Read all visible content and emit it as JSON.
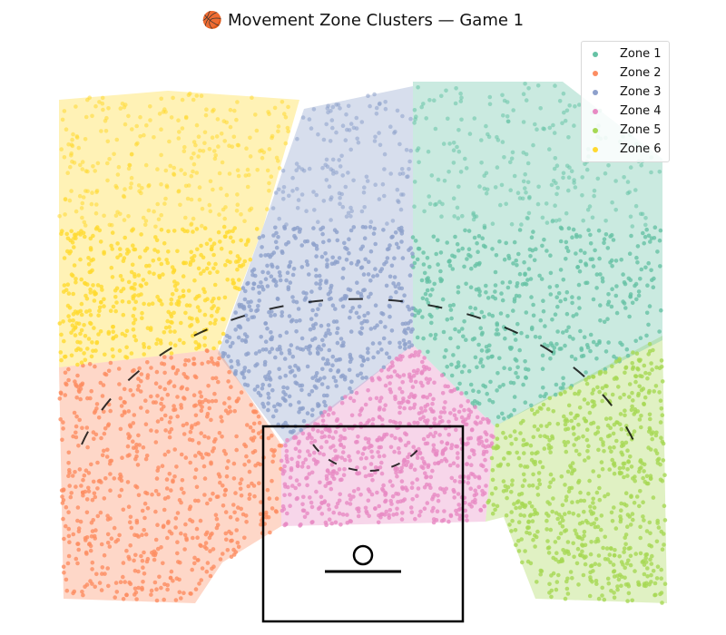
{
  "chart_data": {
    "type": "scatter",
    "title": "🏀 Movement Zone Clusters — Game 1",
    "xlabel": "",
    "ylabel": "",
    "grid": false,
    "legend_placement": "top-right",
    "axes_visible": false,
    "series": [
      {
        "name": "Zone 1",
        "color": "#66c2a5",
        "region": [
          [
            455,
            280
          ],
          [
            455,
            380
          ],
          [
            545,
            470
          ],
          [
            730,
            375
          ],
          [
            730,
            175
          ],
          [
            620,
            90
          ],
          [
            455,
            90
          ]
        ]
      },
      {
        "name": "Zone 2",
        "color": "#fc8d62",
        "region": [
          [
            65,
            405
          ],
          [
            240,
            385
          ],
          [
            310,
            490
          ],
          [
            310,
            580
          ],
          [
            245,
            620
          ],
          [
            215,
            665
          ],
          [
            70,
            660
          ]
        ]
      },
      {
        "name": "Zone 3",
        "color": "#8da0cb",
        "region": [
          [
            290,
            250
          ],
          [
            335,
            120
          ],
          [
            455,
            95
          ],
          [
            455,
            380
          ],
          [
            315,
            490
          ],
          [
            240,
            390
          ]
        ]
      },
      {
        "name": "Zone 4",
        "color": "#e78ac3",
        "region": [
          [
            455,
            380
          ],
          [
            545,
            470
          ],
          [
            535,
            575
          ],
          [
            310,
            580
          ],
          [
            310,
            490
          ]
        ]
      },
      {
        "name": "Zone 5",
        "color": "#a6d854",
        "region": [
          [
            545,
            470
          ],
          [
            730,
            370
          ],
          [
            735,
            665
          ],
          [
            590,
            660
          ],
          [
            555,
            570
          ],
          [
            535,
            575
          ]
        ]
      },
      {
        "name": "Zone 6",
        "color": "#ffd92f",
        "region": [
          [
            65,
            110
          ],
          [
            185,
            100
          ],
          [
            330,
            110
          ],
          [
            290,
            250
          ],
          [
            240,
            385
          ],
          [
            65,
            405
          ]
        ]
      }
    ]
  },
  "legend": {
    "items": [
      "Zone 1",
      "Zone 2",
      "Zone 3",
      "Zone 4",
      "Zone 5",
      "Zone 6"
    ]
  }
}
